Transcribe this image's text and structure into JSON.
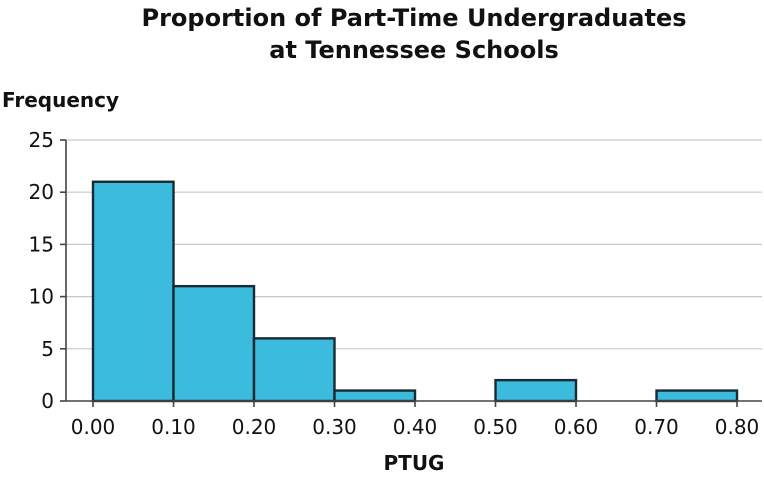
{
  "chart_data": {
    "type": "bar",
    "title": [
      "Proportion of Part-Time Undergraduates",
      "at Tennessee Schools"
    ],
    "xlabel": "PTUG",
    "ylabel": "Frequency",
    "bins": [
      {
        "x0": 0.0,
        "x1": 0.1,
        "value": 21
      },
      {
        "x0": 0.1,
        "x1": 0.2,
        "value": 11
      },
      {
        "x0": 0.2,
        "x1": 0.3,
        "value": 6
      },
      {
        "x0": 0.3,
        "x1": 0.4,
        "value": 1
      },
      {
        "x0": 0.4,
        "x1": 0.5,
        "value": 0
      },
      {
        "x0": 0.5,
        "x1": 0.6,
        "value": 2
      },
      {
        "x0": 0.6,
        "x1": 0.7,
        "value": 0
      },
      {
        "x0": 0.7,
        "x1": 0.8,
        "value": 1
      }
    ],
    "xticks": [
      "0.00",
      "0.10",
      "0.20",
      "0.30",
      "0.40",
      "0.50",
      "0.60",
      "0.70",
      "0.80"
    ],
    "xtick_values": [
      0.0,
      0.1,
      0.2,
      0.3,
      0.4,
      0.5,
      0.6,
      0.7,
      0.8
    ],
    "yticks": [
      "0",
      "5",
      "10",
      "15",
      "20",
      "25"
    ],
    "ytick_values": [
      0,
      5,
      10,
      15,
      20,
      25
    ],
    "xlim": [
      0.0,
      0.8
    ],
    "ylim": [
      0,
      25
    ],
    "grid": "horizontal",
    "colors": {
      "bar_fill": "#3bbbdd",
      "bar_stroke": "#1a2a33"
    }
  }
}
